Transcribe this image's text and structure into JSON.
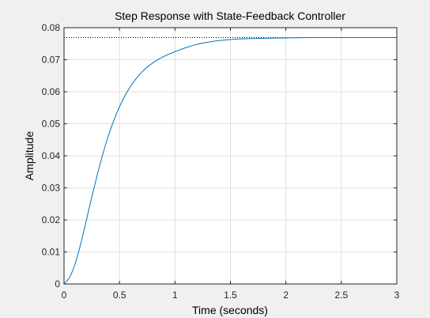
{
  "chart_data": {
    "type": "line",
    "title": "Step Response with State-Feedback Controller",
    "xlabel": "Time (seconds)",
    "ylabel": "Amplitude",
    "xlim": [
      0,
      3
    ],
    "ylim": [
      0,
      0.08
    ],
    "x_ticks": [
      0,
      0.5,
      1,
      1.5,
      2,
      2.5,
      3
    ],
    "x_tick_labels": [
      "0",
      "0.5",
      "1",
      "1.5",
      "2",
      "2.5",
      "3"
    ],
    "y_ticks": [
      0,
      0.01,
      0.02,
      0.03,
      0.04,
      0.05,
      0.06,
      0.07,
      0.08
    ],
    "y_tick_labels": [
      "0",
      "0.01",
      "0.02",
      "0.03",
      "0.04",
      "0.05",
      "0.06",
      "0.07",
      "0.08"
    ],
    "grid": true,
    "steady_state": 0.0769,
    "series": [
      {
        "color": "#0072bd",
        "x": [
          0,
          0.05,
          0.1,
          0.15,
          0.2,
          0.25,
          0.3,
          0.35,
          0.4,
          0.45,
          0.5,
          0.55,
          0.6,
          0.65,
          0.7,
          0.75,
          0.8,
          0.85,
          0.9,
          0.95,
          1.0,
          1.1,
          1.2,
          1.3,
          1.4,
          1.5,
          1.6,
          1.8,
          2.0,
          2.2,
          2.5,
          2.8,
          3.0
        ],
        "y": [
          0,
          0.0021,
          0.0063,
          0.0125,
          0.0197,
          0.0271,
          0.0341,
          0.0406,
          0.0463,
          0.0512,
          0.0553,
          0.0588,
          0.0617,
          0.0641,
          0.0661,
          0.0677,
          0.069,
          0.0701,
          0.071,
          0.0718,
          0.0725,
          0.0738,
          0.0748,
          0.0755,
          0.076,
          0.0763,
          0.0765,
          0.0767,
          0.0768,
          0.0769,
          0.0769,
          0.0769,
          0.0769
        ]
      }
    ],
    "colors": {
      "axes_background": "#ffffff",
      "figure_background": "#f0f0f0",
      "grid": "#dfdfdf",
      "axis": "#262626",
      "steady_state_line": "#000000"
    }
  }
}
